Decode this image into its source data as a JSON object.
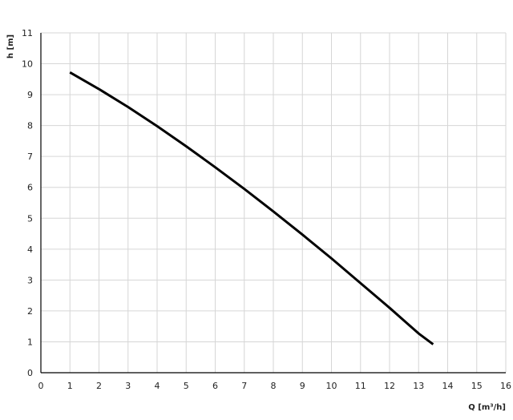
{
  "chart_data": {
    "type": "line",
    "title": "",
    "xlabel": "Q [m³/h]",
    "ylabel": "h [m]",
    "xlim": [
      0,
      16
    ],
    "ylim": [
      0,
      11
    ],
    "xticks": [
      "0",
      "1",
      "2",
      "3",
      "4",
      "5",
      "6",
      "7",
      "8",
      "9",
      "10",
      "11",
      "12",
      "13",
      "14",
      "15",
      "16"
    ],
    "yticks": [
      "0",
      "1",
      "2",
      "3",
      "4",
      "5",
      "6",
      "7",
      "8",
      "9",
      "10",
      "11"
    ],
    "grid": true,
    "series": [
      {
        "color": "#000000",
        "x": [
          1,
          2,
          3,
          4,
          5,
          6,
          7,
          8,
          9,
          10,
          11,
          12,
          13,
          13.5
        ],
        "y": [
          9.72,
          9.18,
          8.6,
          7.98,
          7.33,
          6.65,
          5.95,
          5.22,
          4.47,
          3.7,
          2.9,
          2.1,
          1.27,
          0.92
        ]
      }
    ]
  }
}
